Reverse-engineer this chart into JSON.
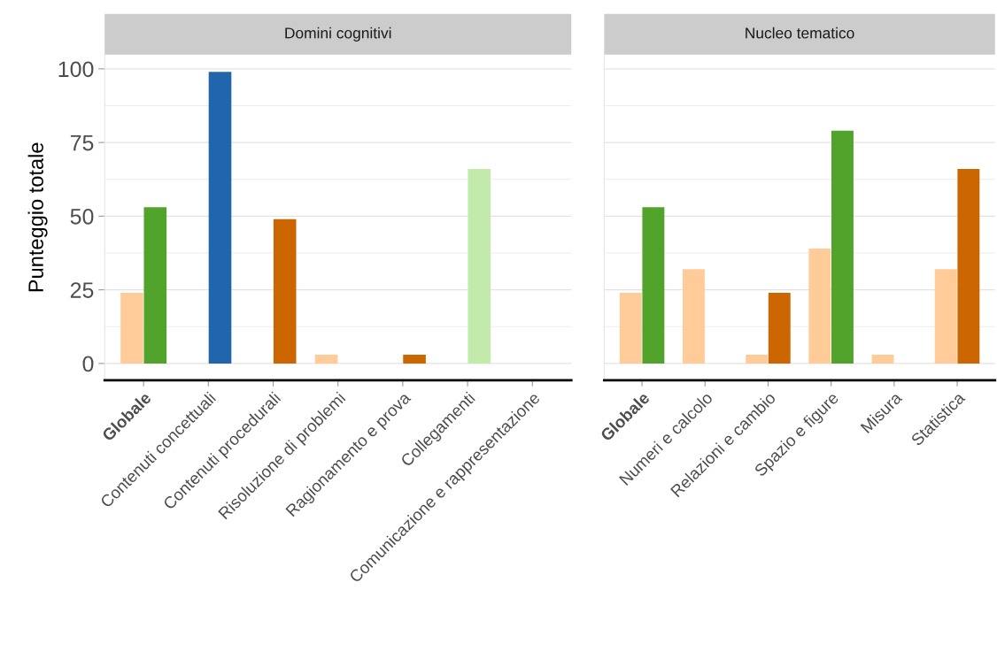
{
  "chart_data": [
    {
      "type": "bar",
      "title": "Domini cognitivi",
      "ylabel": "Punteggio totale",
      "categories": [
        "Globale",
        "Contenuti concettuali",
        "Contenuti procedurali",
        "Risoluzione di problemi",
        "Ragionamento e prova",
        "Collegamenti",
        "Comunicazione e rappresentazione"
      ],
      "series": [
        {
          "color": "#ffcc99",
          "values": [
            24,
            null,
            null,
            3,
            null,
            null,
            null
          ]
        },
        {
          "colors": [
            "#52a32b",
            "#2166ac",
            "#cc6600",
            null,
            "#cc6600",
            "#c2eaab",
            null
          ],
          "values": [
            53,
            99,
            49,
            null,
            3,
            66,
            null
          ]
        }
      ],
      "ylim": [
        -5.7,
        104.8
      ],
      "yticks": [
        0,
        25,
        50,
        75,
        100
      ],
      "grid": "y"
    },
    {
      "type": "bar",
      "title": "Nucleo tematico",
      "categories": [
        "Globale",
        "Numeri e calcolo",
        "Relazioni e cambio",
        "Spazio e figure",
        "Misura",
        "Statistica"
      ],
      "series": [
        {
          "color": "#ffcc99",
          "values": [
            24,
            32,
            3,
            39,
            3,
            32
          ]
        },
        {
          "colors": [
            "#52a32b",
            null,
            "#cc6600",
            "#52a32b",
            null,
            "#cc6600"
          ],
          "values": [
            53,
            null,
            24,
            79,
            null,
            66
          ]
        }
      ],
      "ylim": [
        -5.7,
        104.8
      ],
      "yticks": [
        0,
        25,
        50,
        75,
        100
      ],
      "grid": "y",
      "tick_labels": "x"
    }
  ]
}
